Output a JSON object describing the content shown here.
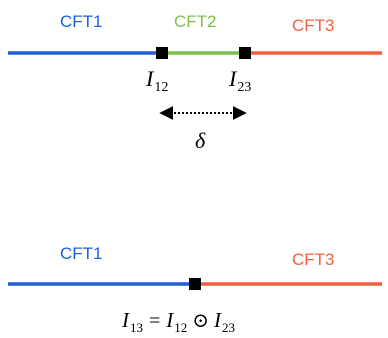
{
  "colors": {
    "blue": "#1f5fd6",
    "green": "#7fc04a",
    "red": "#f0623f",
    "black": "#000000"
  },
  "top": {
    "cft1_label": "CFT1",
    "cft2_label": "CFT2",
    "cft3_label": "CFT3",
    "interface_12": {
      "base": "I",
      "sub": "12"
    },
    "interface_23": {
      "base": "I",
      "sub": "23"
    },
    "separation_symbol": "δ"
  },
  "bottom": {
    "cft1_label": "CFT1",
    "cft3_label": "CFT3",
    "fusion": {
      "lhs_base": "I",
      "lhs_sub": "13",
      "equals": "=",
      "a_base": "I",
      "a_sub": "12",
      "operator": "⊙",
      "b_base": "I",
      "b_sub": "23"
    }
  }
}
